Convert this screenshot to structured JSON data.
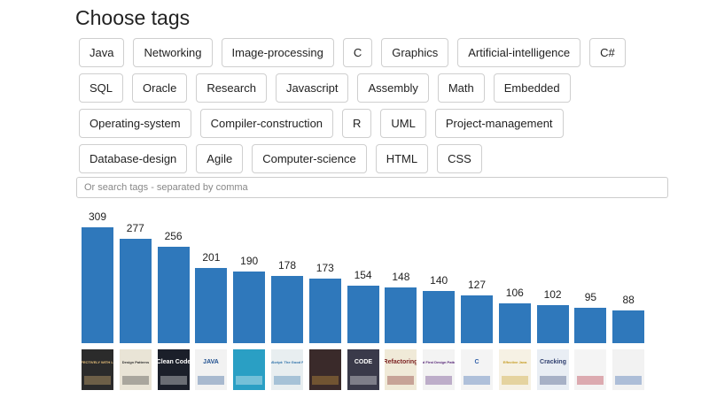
{
  "page": {
    "title": "Choose tags"
  },
  "tags": [
    [
      "Java",
      "Networking",
      "Image-processing",
      "C",
      "Graphics",
      "Artificial-intelligence",
      "C#"
    ],
    [
      "SQL",
      "Oracle",
      "Research",
      "Javascript",
      "Assembly",
      "Math",
      "Embedded"
    ],
    [
      "Operating-system",
      "Compiler-construction",
      "R",
      "UML",
      "Project-management"
    ],
    [
      "Database-design",
      "Agile",
      "Computer-science",
      "HTML",
      "CSS"
    ]
  ],
  "search": {
    "placeholder": "Or search tags - separated by comma",
    "value": ""
  },
  "chart_data": {
    "type": "bar",
    "values": [
      309,
      277,
      256,
      201,
      190,
      178,
      173,
      154,
      148,
      140,
      127,
      106,
      102,
      95,
      88
    ],
    "ylim": [
      0,
      330
    ],
    "color": "#2f78bb"
  },
  "books": [
    {
      "title": "WORKING EFFECTIVELY WITH LEGACY CODE",
      "bg": "#2b2b2b",
      "fg": "#e8c07a"
    },
    {
      "title": "Design Patterns",
      "bg": "#e9e4d6",
      "fg": "#333333"
    },
    {
      "title": "Clean Code",
      "bg": "#1b1f2a",
      "fg": "#ffffff"
    },
    {
      "title": "JAVA",
      "bg": "#f2f2f2",
      "fg": "#1f4f8f"
    },
    {
      "title": "",
      "bg": "#2a9fc4",
      "fg": "#ffffff"
    },
    {
      "title": "JavaScript: The Good Parts",
      "bg": "#e8eef0",
      "fg": "#2a6fa8"
    },
    {
      "title": "",
      "bg": "#3a2a2a",
      "fg": "#d9a441"
    },
    {
      "title": "CODE",
      "bg": "#3a3a4a",
      "fg": "#ffffff"
    },
    {
      "title": "Refactoring",
      "bg": "#f0ead8",
      "fg": "#7a1f1f"
    },
    {
      "title": "Head First Design Patterns",
      "bg": "#f3f3f3",
      "fg": "#5a2a7a"
    },
    {
      "title": "C",
      "bg": "#f4f4f4",
      "fg": "#2f5fa8"
    },
    {
      "title": "Effective Java",
      "bg": "#f6f1e4",
      "fg": "#c59a1f"
    },
    {
      "title": "Cracking",
      "bg": "#e9eef4",
      "fg": "#2f3f6f"
    },
    {
      "title": "",
      "bg": "#f4f4f4",
      "fg": "#b02030"
    },
    {
      "title": "",
      "bg": "#f2f2f2",
      "fg": "#2f5fa8"
    }
  ]
}
